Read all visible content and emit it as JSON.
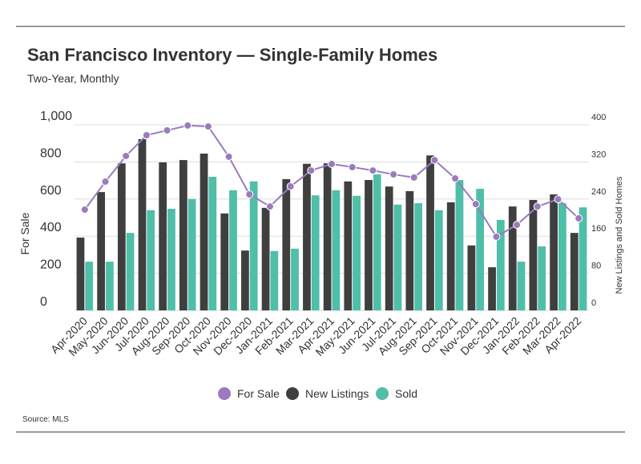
{
  "chart_data": {
    "type": "bar-line",
    "title": "San Francisco Inventory — Single-Family Homes",
    "subtitle": "Two-Year, Monthly",
    "source": "Source:  MLS",
    "y_label": "For Sale",
    "y2_label": "New Listings and Sold Homes",
    "categories": [
      "Apr-2020",
      "May-2020",
      "Jun-2020",
      "Jul-2020",
      "Aug-2020",
      "Sep-2020",
      "Oct-2020",
      "Nov-2020",
      "Dec-2020",
      "Jan-2021",
      "Feb-2021",
      "Mar-2021",
      "Apr-2021",
      "May-2021",
      "Jun-2021",
      "Jul-2021",
      "Aug-2021",
      "Sep-2021",
      "Oct-2021",
      "Nov-2021",
      "Dec-2021",
      "Jan-2022",
      "Feb-2022",
      "Mar-2022",
      "Apr-2022"
    ],
    "series": [
      {
        "name": "For Sale",
        "type": "line",
        "color": "#9b7bbd",
        "values": [
          543,
          694,
          832,
          944,
          970,
          996,
          991,
          828,
          625,
          560,
          668,
          754,
          789,
          772,
          754,
          733,
          716,
          810,
          711,
          573,
          397,
          461,
          560,
          599,
          496
        ]
      },
      {
        "name": "New Listings",
        "type": "bar",
        "axis": "y2",
        "color": "#3f3f3f",
        "values": [
          157,
          255,
          317,
          369,
          319,
          324,
          338,
          209,
          129,
          221,
          283,
          316,
          317,
          278,
          281,
          267,
          257,
          334,
          233,
          140,
          93,
          224,
          238,
          250,
          167
        ]
      },
      {
        "name": "Sold",
        "type": "bar",
        "axis": "y2",
        "color": "#4fbfa8",
        "values": [
          105,
          105,
          167,
          216,
          219,
          240,
          288,
          259,
          278,
          128,
          133,
          248,
          259,
          247,
          293,
          228,
          231,
          216,
          281,
          262,
          195,
          105,
          138,
          231,
          222
        ]
      }
    ],
    "ylim": [
      0,
      1000
    ],
    "yticks": [
      0,
      200,
      400,
      600,
      800,
      {
        "value": 1000,
        "label": "1,000"
      }
    ],
    "y2lim": [
      0,
      400
    ],
    "y2ticks": [
      0,
      80,
      160,
      240,
      320,
      400
    ],
    "grid": true,
    "legend": "bottom"
  }
}
